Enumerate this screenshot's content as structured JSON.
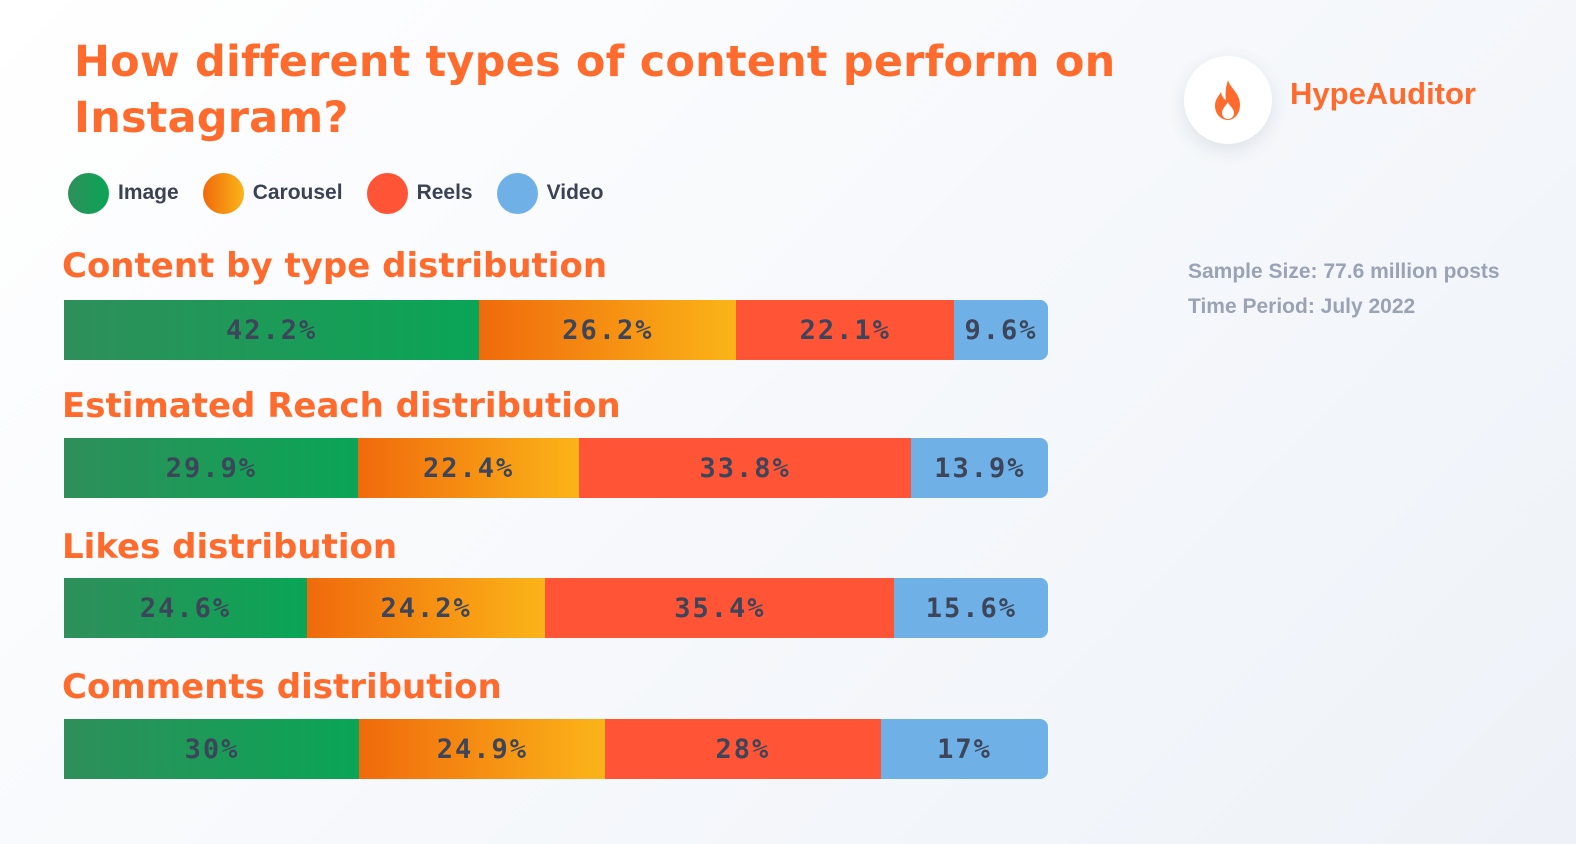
{
  "title": "How different types of content perform on Instagram?",
  "brand": {
    "name": "HypeAuditor",
    "icon": "flame-icon",
    "color": "#ff6b2c"
  },
  "meta": {
    "sample_size": "Sample Size: 77.6 million posts",
    "time_period": "Time Period: July 2022"
  },
  "colors": {
    "Image": [
      "#2e8f5a",
      "#0aa556"
    ],
    "Carousel": [
      "#f06a0c",
      "#fbb418"
    ],
    "Reels": [
      "#ff5436",
      "#ff5436"
    ],
    "Video": [
      "#6fb0e6",
      "#6fb0e6"
    ]
  },
  "chart_data": {
    "type": "bar",
    "orientation": "horizontal",
    "stacked": true,
    "normalized": true,
    "title": "How different types of content perform on Instagram?",
    "legend": {
      "placement": "top",
      "entries": [
        "Image",
        "Carousel",
        "Reels",
        "Video"
      ]
    },
    "grid": false,
    "categories": [
      "Content by type distribution",
      "Estimated Reach distribution",
      "Likes distribution",
      "Comments distribution"
    ],
    "series": [
      {
        "name": "Image",
        "values": [
          42.2,
          29.9,
          24.6,
          30
        ],
        "labels": [
          "42.2%",
          "29.9%",
          "24.6%",
          "30%"
        ]
      },
      {
        "name": "Carousel",
        "values": [
          26.2,
          22.4,
          24.2,
          24.9
        ],
        "labels": [
          "26.2%",
          "22.4%",
          "24.2%",
          "24.9%"
        ]
      },
      {
        "name": "Reels",
        "values": [
          22.1,
          33.8,
          35.4,
          28
        ],
        "labels": [
          "22.1%",
          "33.8%",
          "35.4%",
          "28%"
        ]
      },
      {
        "name": "Video",
        "values": [
          9.6,
          13.9,
          15.6,
          17
        ],
        "labels": [
          "9.6%",
          "13.9%",
          "15.6%",
          "17%"
        ]
      }
    ]
  }
}
